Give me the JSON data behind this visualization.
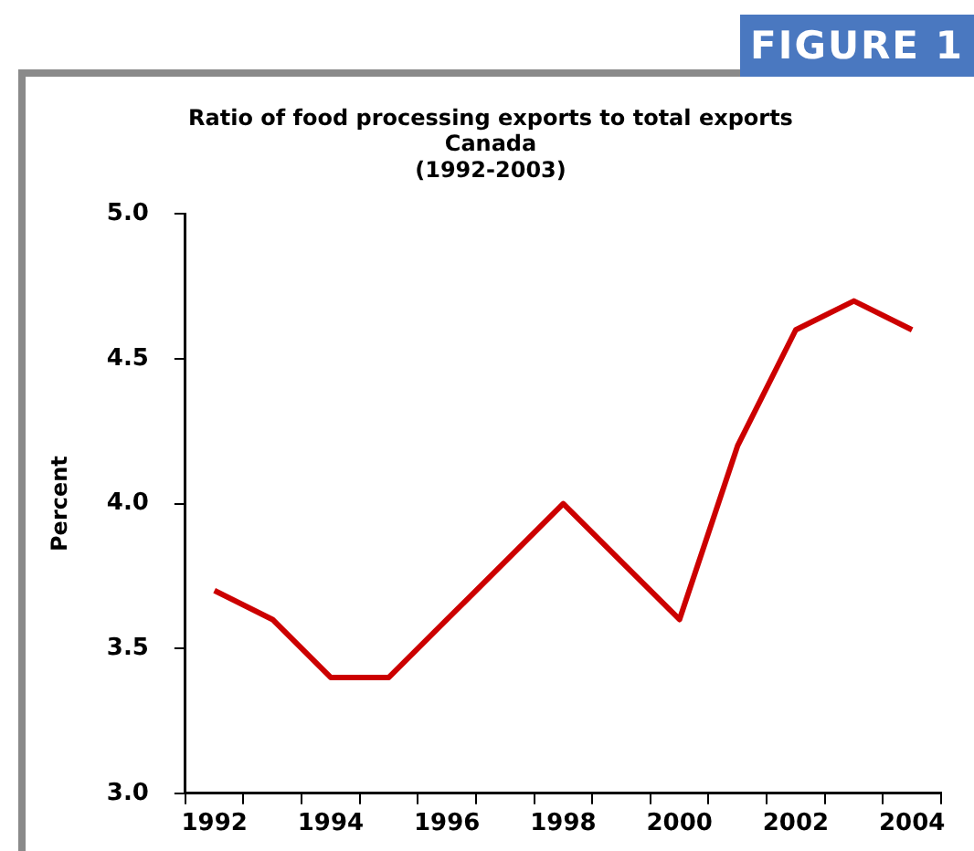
{
  "chart_data": {
    "type": "line",
    "title": "Ratio of food processing exports to total exports\nCanada\n(1992-2003)",
    "ylabel": "Percent",
    "annotations": [
      "FIGURE 1"
    ],
    "categories": [
      "1992",
      null,
      "1994",
      null,
      "1996",
      null,
      "1998",
      null,
      "2000",
      null,
      "2002",
      null,
      "2004"
    ],
    "series": [
      {
        "color": "#cc0000",
        "values": [
          3.7,
          3.6,
          3.4,
          3.4,
          3.6,
          3.8,
          4.0,
          3.8,
          3.6,
          4.2,
          4.6,
          4.7,
          4.6
        ]
      }
    ],
    "ylim": [
      3.0,
      5.0
    ],
    "yticks": [
      {
        "value": 3.0,
        "label": "3.0"
      },
      {
        "value": 3.5,
        "label": "3.5"
      },
      {
        "value": 4.0,
        "label": "4.0"
      },
      {
        "value": 4.5,
        "label": "4.5"
      },
      {
        "value": 5.0,
        "label": "5.0"
      }
    ],
    "grid": false,
    "legend": false,
    "marker": "none",
    "line_style": "solid"
  }
}
